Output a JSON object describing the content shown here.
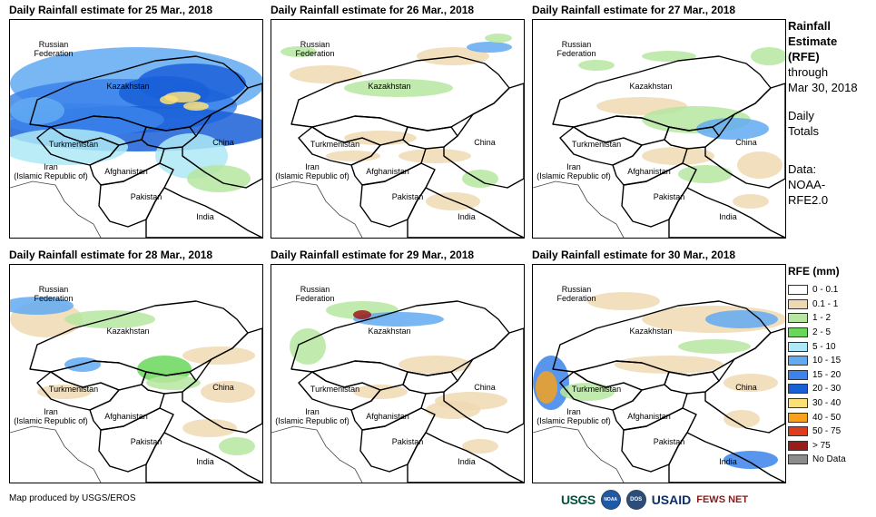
{
  "panels": [
    {
      "title": "Daily Rainfall estimate for 25 Mar., 2018",
      "pattern": "heavy"
    },
    {
      "title": "Daily Rainfall estimate for 26 Mar., 2018",
      "pattern": "light-north"
    },
    {
      "title": "Daily Rainfall estimate for 27 Mar., 2018",
      "pattern": "light-east"
    },
    {
      "title": "Daily Rainfall estimate for 28 Mar., 2018",
      "pattern": "light-mixed"
    },
    {
      "title": "Daily Rainfall estimate for 29 Mar., 2018",
      "pattern": "light-north"
    },
    {
      "title": "Daily Rainfall estimate for 30 Mar., 2018",
      "pattern": "moderate-north"
    }
  ],
  "map_labels": {
    "russia": "Russian\nFederation",
    "kazakhstan": "Kazakhstan",
    "turkmenistan": "Turkmenistan",
    "iran": "Iran\n(Islamic Republic of)",
    "afghanistan": "Afghanistan",
    "china": "China",
    "pakistan": "Pakistan",
    "india": "India"
  },
  "sidebar": {
    "title_line1": "Rainfall",
    "title_line2": "Estimate",
    "title_line3": "(RFE)",
    "through": "through",
    "through_date": "Mar 30, 2018",
    "totals_line1": "Daily",
    "totals_line2": "Totals",
    "source_line1": "Data:",
    "source_line2": "NOAA-",
    "source_line3": "RFE2.0"
  },
  "legend": {
    "title": "RFE (mm)",
    "items": [
      {
        "label": "0 - 0.1",
        "color": "#ffffff"
      },
      {
        "label": "0.1 - 1",
        "color": "#eed9b3"
      },
      {
        "label": "1 - 2",
        "color": "#b6e6a0"
      },
      {
        "label": "2 - 5",
        "color": "#6ad75b"
      },
      {
        "label": "5 - 10",
        "color": "#aee9f7"
      },
      {
        "label": "10 - 15",
        "color": "#62aaf2"
      },
      {
        "label": "15 - 20",
        "color": "#3b82ea"
      },
      {
        "label": "20 - 30",
        "color": "#1a5fd8"
      },
      {
        "label": "30 - 40",
        "color": "#fbe07a"
      },
      {
        "label": "40 - 50",
        "color": "#f6a21e"
      },
      {
        "label": "50 - 75",
        "color": "#e23b1b"
      },
      {
        "label": "> 75",
        "color": "#9b1b1b"
      },
      {
        "label": "No Data",
        "color": "#8c8c8c"
      }
    ]
  },
  "credit": "Map produced by USGS/EROS",
  "logos": {
    "usgs": "USGS",
    "noaa": "NOAA",
    "dos": "DOS",
    "usaid": "USAID",
    "fews": "FEWS NET"
  }
}
